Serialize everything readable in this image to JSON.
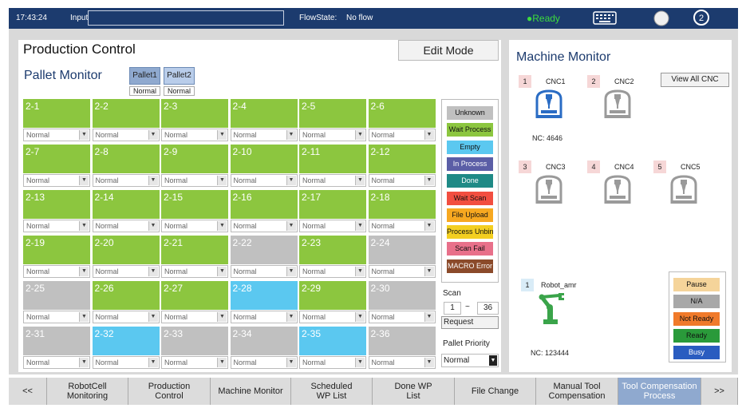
{
  "topbar": {
    "time": "17:43:24",
    "input_label": "Input:",
    "input_value": "",
    "flowstate_label": "FlowState:",
    "flowstate_value": "No flow",
    "status": "●Ready",
    "icons": [
      "keyboard-icon",
      "circle-icon",
      "user-icon"
    ]
  },
  "production": {
    "title": "Production Control",
    "edit_mode": "Edit Mode",
    "pallet_monitor_title": "Pallet Monitor",
    "pallets": [
      {
        "label": "Pallet1",
        "status": "Normal"
      },
      {
        "label": "Pallet2",
        "status": "Normal"
      }
    ]
  },
  "colors": {
    "Unknown": "#c0c0c0",
    "Wait Process": "#8cc63f",
    "Empty": "#5bc8f0",
    "In Process": "#5b5ea6",
    "Done": "#1f8a86",
    "Wait Scan": "#f24e40",
    "File Upload": "#f7a820",
    "Process Unbind": "#f3cf20",
    "Scan Fail": "#e8708a",
    "MACRO Error": "#8b4a2a"
  },
  "cells": [
    {
      "id": "2-1",
      "state": "Wait Process",
      "mode": "Normal"
    },
    {
      "id": "2-2",
      "state": "Wait Process",
      "mode": "Normal"
    },
    {
      "id": "2-3",
      "state": "Wait Process",
      "mode": "Normal"
    },
    {
      "id": "2-4",
      "state": "Wait Process",
      "mode": "Normal"
    },
    {
      "id": "2-5",
      "state": "Wait Process",
      "mode": "Normal"
    },
    {
      "id": "2-6",
      "state": "Wait Process",
      "mode": "Normal"
    },
    {
      "id": "2-7",
      "state": "Wait Process",
      "mode": "Normal"
    },
    {
      "id": "2-8",
      "state": "Wait Process",
      "mode": "Normal"
    },
    {
      "id": "2-9",
      "state": "Wait Process",
      "mode": "Normal"
    },
    {
      "id": "2-10",
      "state": "Wait Process",
      "mode": "Normal"
    },
    {
      "id": "2-11",
      "state": "Wait Process",
      "mode": "Normal"
    },
    {
      "id": "2-12",
      "state": "Wait Process",
      "mode": "Normal"
    },
    {
      "id": "2-13",
      "state": "Wait Process",
      "mode": "Normal"
    },
    {
      "id": "2-14",
      "state": "Wait Process",
      "mode": "Normal"
    },
    {
      "id": "2-15",
      "state": "Wait Process",
      "mode": "Normal"
    },
    {
      "id": "2-16",
      "state": "Wait Process",
      "mode": "Normal"
    },
    {
      "id": "2-17",
      "state": "Wait Process",
      "mode": "Normal"
    },
    {
      "id": "2-18",
      "state": "Wait Process",
      "mode": "Normal"
    },
    {
      "id": "2-19",
      "state": "Wait Process",
      "mode": "Normal"
    },
    {
      "id": "2-20",
      "state": "Wait Process",
      "mode": "Normal"
    },
    {
      "id": "2-21",
      "state": "Wait Process",
      "mode": "Normal"
    },
    {
      "id": "2-22",
      "state": "Unknown",
      "mode": "Normal"
    },
    {
      "id": "2-23",
      "state": "Wait Process",
      "mode": "Normal"
    },
    {
      "id": "2-24",
      "state": "Unknown",
      "mode": "Normal"
    },
    {
      "id": "2-25",
      "state": "Unknown",
      "mode": "Normal"
    },
    {
      "id": "2-26",
      "state": "Wait Process",
      "mode": "Normal"
    },
    {
      "id": "2-27",
      "state": "Wait Process",
      "mode": "Normal"
    },
    {
      "id": "2-28",
      "state": "Empty",
      "mode": "Normal"
    },
    {
      "id": "2-29",
      "state": "Wait Process",
      "mode": "Normal"
    },
    {
      "id": "2-30",
      "state": "Unknown",
      "mode": "Normal"
    },
    {
      "id": "2-31",
      "state": "Unknown",
      "mode": "Normal"
    },
    {
      "id": "2-32",
      "state": "Empty",
      "mode": "Normal"
    },
    {
      "id": "2-33",
      "state": "Unknown",
      "mode": "Normal"
    },
    {
      "id": "2-34",
      "state": "Unknown",
      "mode": "Normal"
    },
    {
      "id": "2-35",
      "state": "Empty",
      "mode": "Normal"
    },
    {
      "id": "2-36",
      "state": "Unknown",
      "mode": "Normal"
    }
  ],
  "legend": [
    {
      "label": "Unknown",
      "color": "#c0c0c0",
      "text": "#111"
    },
    {
      "label": "Wait Process",
      "color": "#8cc63f",
      "text": "#111"
    },
    {
      "label": "Empty",
      "color": "#5bc8f0",
      "text": "#111"
    },
    {
      "label": "In Process",
      "color": "#5b5ea6",
      "text": "#fff"
    },
    {
      "label": "Done",
      "color": "#1f8a86",
      "text": "#fff"
    },
    {
      "label": "Wait Scan",
      "color": "#f24e40",
      "text": "#111"
    },
    {
      "label": "File Upload",
      "color": "#f7a820",
      "text": "#111"
    },
    {
      "label": "Process Unbind",
      "color": "#f3cf20",
      "text": "#111"
    },
    {
      "label": "Scan Fail",
      "color": "#e8708a",
      "text": "#111"
    },
    {
      "label": "MACRO Error",
      "color": "#8b4a2a",
      "text": "#fff"
    }
  ],
  "scan": {
    "label": "Scan",
    "from": "1",
    "sep": "~",
    "to": "36",
    "request": "Request"
  },
  "pallet_priority": {
    "label": "Pallet Priority",
    "value": "Normal"
  },
  "machine_monitor": {
    "title": "Machine Monitor",
    "view_all": "View All CNC",
    "machines": [
      {
        "num": "1",
        "name": "CNC1",
        "nc": "NC: 4646",
        "active": true
      },
      {
        "num": "2",
        "name": "CNC2",
        "nc": "",
        "active": false
      },
      {
        "num": "3",
        "name": "CNC3",
        "nc": "",
        "active": false
      },
      {
        "num": "4",
        "name": "CNC4",
        "nc": "",
        "active": false
      },
      {
        "num": "5",
        "name": "CNC5",
        "nc": "",
        "active": false
      }
    ],
    "robot": {
      "num": "1",
      "name": "Robot_amr",
      "nc": "NC: 123444"
    },
    "robot_states": [
      {
        "label": "Pause",
        "color": "#f5d49a"
      },
      {
        "label": "N/A",
        "color": "#a8a8a8"
      },
      {
        "label": "Not Ready",
        "color": "#f07a2a"
      },
      {
        "label": "Ready",
        "color": "#2a9a3a"
      },
      {
        "label": "Busy",
        "color": "#2a5cc0"
      }
    ]
  },
  "bottom_tabs": [
    "<<",
    "RobotCell\nMonitoring",
    "Production\nControl",
    "Machine Monitor",
    "Scheduled\nWP List",
    "Done WP\nList",
    "File Change",
    "Manual Tool\nCompensation",
    "Tool Compensation\nProcess",
    ">>"
  ]
}
